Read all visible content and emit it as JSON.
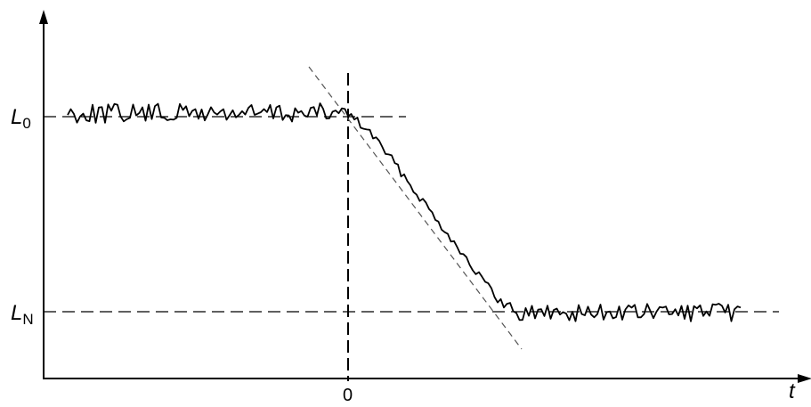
{
  "diagram": {
    "y_labels": {
      "upper": {
        "main": "L",
        "sub": "0"
      },
      "lower": {
        "main": "N",
        "prefix": "L"
      }
    },
    "x_axis_label": "t",
    "origin_tick_label": "0",
    "signal": {
      "initial_level": "L0",
      "final_level": "LN",
      "transition_start": "0"
    }
  }
}
